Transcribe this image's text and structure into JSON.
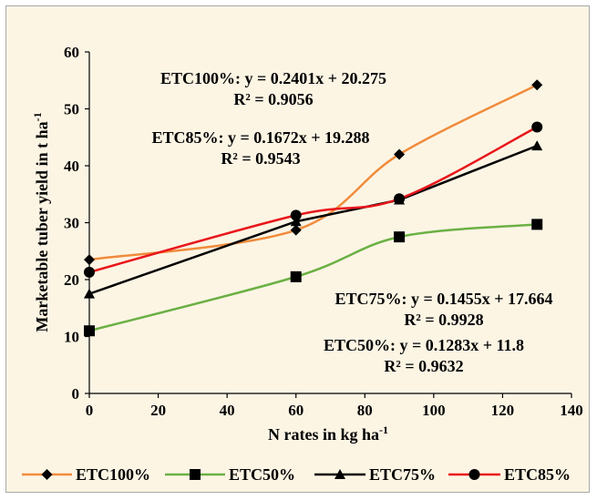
{
  "chart_data": {
    "type": "line",
    "x": [
      0,
      60,
      90,
      130
    ],
    "xlabel_main": "N rates in kg ha",
    "xlabel_sup": "-1",
    "ylabel_main": "Marketable tuber yield in t ha",
    "ylabel_sup": "-1",
    "xlim": [
      0,
      140
    ],
    "ylim": [
      0,
      60
    ],
    "xticks": [
      0,
      20,
      40,
      60,
      80,
      100,
      120,
      140
    ],
    "yticks": [
      0,
      10,
      20,
      30,
      40,
      50,
      60
    ],
    "legend_position": "bottom",
    "series": [
      {
        "name": "ETC100%",
        "color": "#f08c3c",
        "marker": "diamond",
        "line": "smooth",
        "values": [
          23.5,
          28.7,
          42.0,
          54.2
        ]
      },
      {
        "name": "ETC50%",
        "color": "#6bb044",
        "marker": "square",
        "line": "smooth",
        "values": [
          11.0,
          20.5,
          27.5,
          29.7
        ]
      },
      {
        "name": "ETC75%",
        "color": "#000000",
        "marker": "triangle",
        "line": "straight",
        "values": [
          17.5,
          30.2,
          34.0,
          43.5
        ]
      },
      {
        "name": "ETC85%",
        "color": "#e8161b",
        "marker": "circle",
        "line": "smooth",
        "values": [
          21.3,
          31.3,
          34.2,
          46.8
        ]
      }
    ],
    "annotations": [
      {
        "series": "ETC100%",
        "equation": "ETC100%: y = 0.2401x + 20.275",
        "r2": "R² = 0.9056"
      },
      {
        "series": "ETC85%",
        "equation": "ETC85%: y = 0.1672x + 19.288",
        "r2": "R² = 0.9543"
      },
      {
        "series": "ETC75%",
        "equation": "ETC75%: y = 0.1455x + 17.664",
        "r2": "R² = 0.9928"
      },
      {
        "series": "ETC50%",
        "equation": "ETC50%: y = 0.1283x + 11.8",
        "r2": "R² = 0.9632"
      }
    ]
  }
}
